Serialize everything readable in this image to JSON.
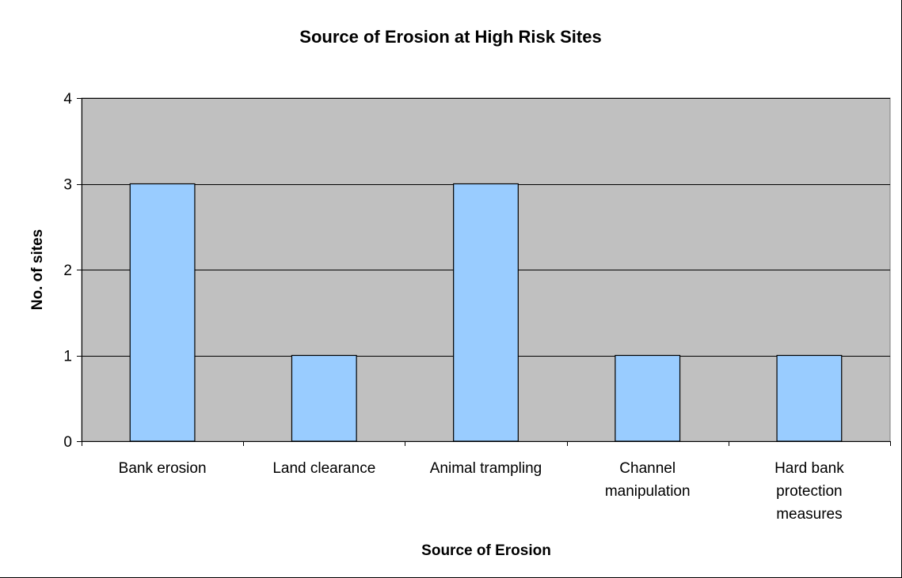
{
  "chart_data": {
    "type": "bar",
    "title": "Source of Erosion at High Risk Sites",
    "xlabel": "Source of Erosion",
    "ylabel": "No. of sites",
    "categories": [
      [
        "Bank erosion"
      ],
      [
        "Land clearance"
      ],
      [
        "Animal trampling"
      ],
      [
        "Channel",
        "manipulation"
      ],
      [
        "Hard bank",
        "protection",
        "measures"
      ]
    ],
    "values": [
      3,
      1,
      3,
      1,
      1
    ],
    "ylim": [
      0,
      4
    ],
    "yticks": [
      0,
      1,
      2,
      3,
      4
    ],
    "grid": true,
    "legend": "none",
    "colors": {
      "plot_background": "#c0c0c0",
      "bar_fill": "#99ccff",
      "bar_stroke": "#000000",
      "grid": "#000000"
    }
  }
}
